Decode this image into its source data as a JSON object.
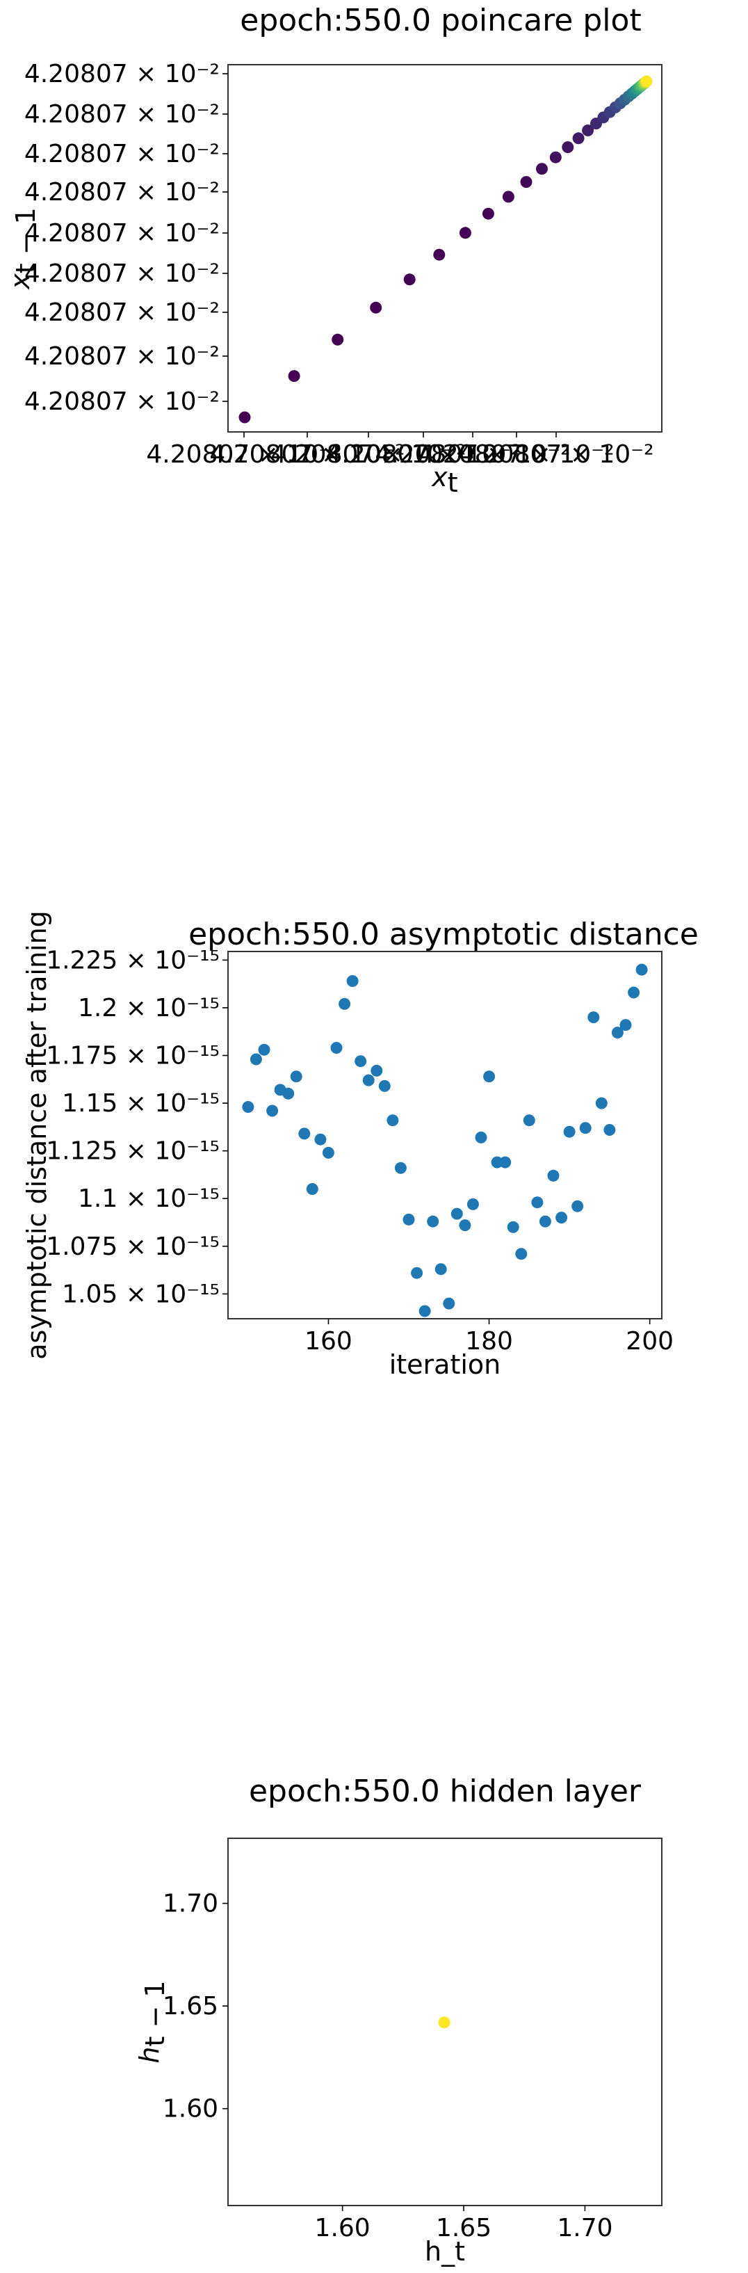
{
  "chart_data": [
    {
      "type": "scatter",
      "title": "epoch:550.0 poincare plot",
      "xlabel": "x_t",
      "ylabel": "x_{t-1}",
      "colormap": "viridis",
      "ytick_labels": [
        "4.20807 × 10⁻²",
        "4.20807 × 10⁻²",
        "4.20807 × 10⁻²",
        "4.20807 × 10⁻²",
        "4.20807 × 10⁻²",
        "4.20807 × 10⁻²",
        "4.20807 × 10⁻²",
        "4.20807 × 10⁻²",
        "4.20807 × 10⁻²"
      ],
      "xtick_labels": [
        "4.20807 × 10⁻²",
        "4.20807 × 10⁻²",
        "4.20807 × 10⁻²",
        "4.20807 × 10⁻²",
        "4.20807 × 10⁻²",
        "4.20807 × 10⁻²",
        "4.20807 × 10⁻²"
      ],
      "points_count": 30,
      "note_values": "all points ≈ 4.20807 × 10⁻², converging geometrically along the diagonal"
    },
    {
      "type": "scatter",
      "title": "epoch:550.0 asymptotic distance",
      "xlabel": "iteration",
      "ylabel": "asymptotic distance after training",
      "color": "#1f77b4",
      "xlim": [
        147.5,
        201.5
      ],
      "ylim": [
        1.037e-15,
        1.2295e-15
      ],
      "xticks": [
        160,
        180,
        200
      ],
      "yticks": [
        1.05e-15,
        1.075e-15,
        1.1e-15,
        1.125e-15,
        1.15e-15,
        1.175e-15,
        1.2e-15,
        1.225e-15
      ],
      "ytick_labels": [
        "1.05 × 10⁻¹⁵",
        "1.075 × 10⁻¹⁵",
        "1.1 × 10⁻¹⁵",
        "1.125 × 10⁻¹⁵",
        "1.15 × 10⁻¹⁵",
        "1.175 × 10⁻¹⁵",
        "1.2 × 10⁻¹⁵",
        "1.225 × 10⁻¹⁵"
      ],
      "x": [
        150,
        151,
        152,
        153,
        154,
        155,
        156,
        157,
        158,
        159,
        160,
        161,
        162,
        163,
        164,
        165,
        166,
        167,
        168,
        169,
        170,
        171,
        172,
        173,
        174,
        175,
        176,
        177,
        178,
        179,
        180,
        181,
        182,
        183,
        184,
        185,
        186,
        187,
        188,
        189,
        190,
        191,
        192,
        193,
        194,
        195,
        196,
        197,
        198,
        199
      ],
      "y": [
        1.148e-15,
        1.173e-15,
        1.178e-15,
        1.146e-15,
        1.157e-15,
        1.155e-15,
        1.164e-15,
        1.134e-15,
        1.105e-15,
        1.131e-15,
        1.124e-15,
        1.179e-15,
        1.202e-15,
        1.214e-15,
        1.172e-15,
        1.162e-15,
        1.167e-15,
        1.159e-15,
        1.141e-15,
        1.116e-15,
        1.089e-15,
        1.061e-15,
        1.041e-15,
        1.088e-15,
        1.063e-15,
        1.045e-15,
        1.092e-15,
        1.086e-15,
        1.097e-15,
        1.132e-15,
        1.164e-15,
        1.119e-15,
        1.119e-15,
        1.085e-15,
        1.071e-15,
        1.141e-15,
        1.098e-15,
        1.088e-15,
        1.112e-15,
        1.09e-15,
        1.135e-15,
        1.096e-15,
        1.137e-15,
        1.195e-15,
        1.15e-15,
        1.136e-15,
        1.187e-15,
        1.191e-15,
        1.208e-15,
        1.22e-15
      ]
    },
    {
      "type": "scatter",
      "title": "epoch:550.0 hidden layer",
      "xlabel": "h_t",
      "ylabel": "h_{t-1}",
      "color": "#fde725",
      "xlim": [
        1.5528,
        1.7317
      ],
      "ylim": [
        1.5528,
        1.7317
      ],
      "xticks": [
        1.6,
        1.65,
        1.7
      ],
      "yticks": [
        1.6,
        1.65,
        1.7
      ],
      "xtick_labels": [
        "1.60",
        "1.65",
        "1.70"
      ],
      "ytick_labels": [
        "1.60",
        "1.65",
        "1.70"
      ],
      "points": [
        [
          1.642,
          1.642
        ]
      ]
    }
  ]
}
